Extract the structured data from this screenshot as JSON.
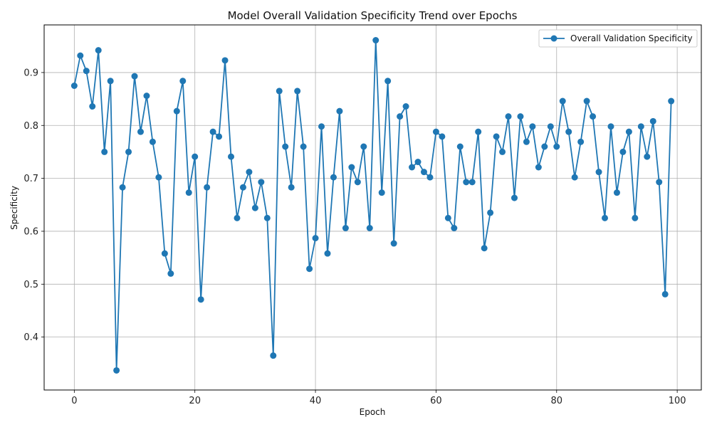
{
  "chart_data": {
    "type": "line",
    "title": "Model Overall Validation Specificity Trend over Epochs",
    "xlabel": "Epoch",
    "ylabel": "Specificity",
    "xlim": [
      -5,
      104
    ],
    "ylim": [
      0.3,
      0.99
    ],
    "xticks": [
      0,
      20,
      40,
      60,
      80,
      100
    ],
    "yticks": [
      0.4,
      0.5,
      0.6,
      0.7,
      0.8,
      0.9
    ],
    "ytick_labels": [
      "0.4",
      "0.5",
      "0.6",
      "0.7",
      "0.8",
      "0.9"
    ],
    "grid": true,
    "legend_position": "top-right",
    "series": [
      {
        "name": "Overall Validation Specificity",
        "color": "#1f77b4",
        "marker": "circle",
        "x": [
          0,
          1,
          2,
          3,
          4,
          5,
          6,
          7,
          8,
          9,
          10,
          11,
          12,
          13,
          14,
          15,
          16,
          17,
          18,
          19,
          20,
          21,
          22,
          23,
          24,
          25,
          26,
          27,
          28,
          29,
          30,
          31,
          32,
          33,
          34,
          35,
          36,
          37,
          38,
          39,
          40,
          41,
          42,
          43,
          44,
          45,
          46,
          47,
          48,
          49,
          50,
          51,
          52,
          53,
          54,
          55,
          56,
          57,
          58,
          59,
          60,
          61,
          62,
          63,
          64,
          65,
          66,
          67,
          68,
          69,
          70,
          71,
          72,
          73,
          74,
          75,
          76,
          77,
          78,
          79,
          80,
          81,
          82,
          83,
          84,
          85,
          86,
          87,
          88,
          89,
          90,
          91,
          92,
          93,
          94,
          95,
          96,
          97,
          98,
          99
        ],
        "values": [
          0.875,
          0.932,
          0.903,
          0.836,
          0.942,
          0.75,
          0.884,
          0.337,
          0.683,
          0.75,
          0.893,
          0.788,
          0.856,
          0.769,
          0.702,
          0.558,
          0.52,
          0.827,
          0.884,
          0.673,
          0.741,
          0.471,
          0.683,
          0.788,
          0.779,
          0.923,
          0.741,
          0.625,
          0.683,
          0.712,
          0.644,
          0.693,
          0.625,
          0.365,
          0.865,
          0.76,
          0.683,
          0.865,
          0.76,
          0.529,
          0.587,
          0.798,
          0.558,
          0.702,
          0.827,
          0.606,
          0.721,
          0.693,
          0.76,
          0.606,
          0.961,
          0.673,
          0.884,
          0.577,
          0.817,
          0.836,
          0.721,
          0.731,
          0.712,
          0.702,
          0.788,
          0.779,
          0.625,
          0.606,
          0.76,
          0.693,
          0.693,
          0.788,
          0.568,
          0.635,
          0.779,
          0.75,
          0.817,
          0.663,
          0.817,
          0.769,
          0.798,
          0.721,
          0.76,
          0.798,
          0.76,
          0.846,
          0.788,
          0.702,
          0.769,
          0.846,
          0.817,
          0.712,
          0.625,
          0.798,
          0.673,
          0.75,
          0.788,
          0.625,
          0.798,
          0.741,
          0.808,
          0.693,
          0.481,
          0.846
        ]
      }
    ]
  }
}
